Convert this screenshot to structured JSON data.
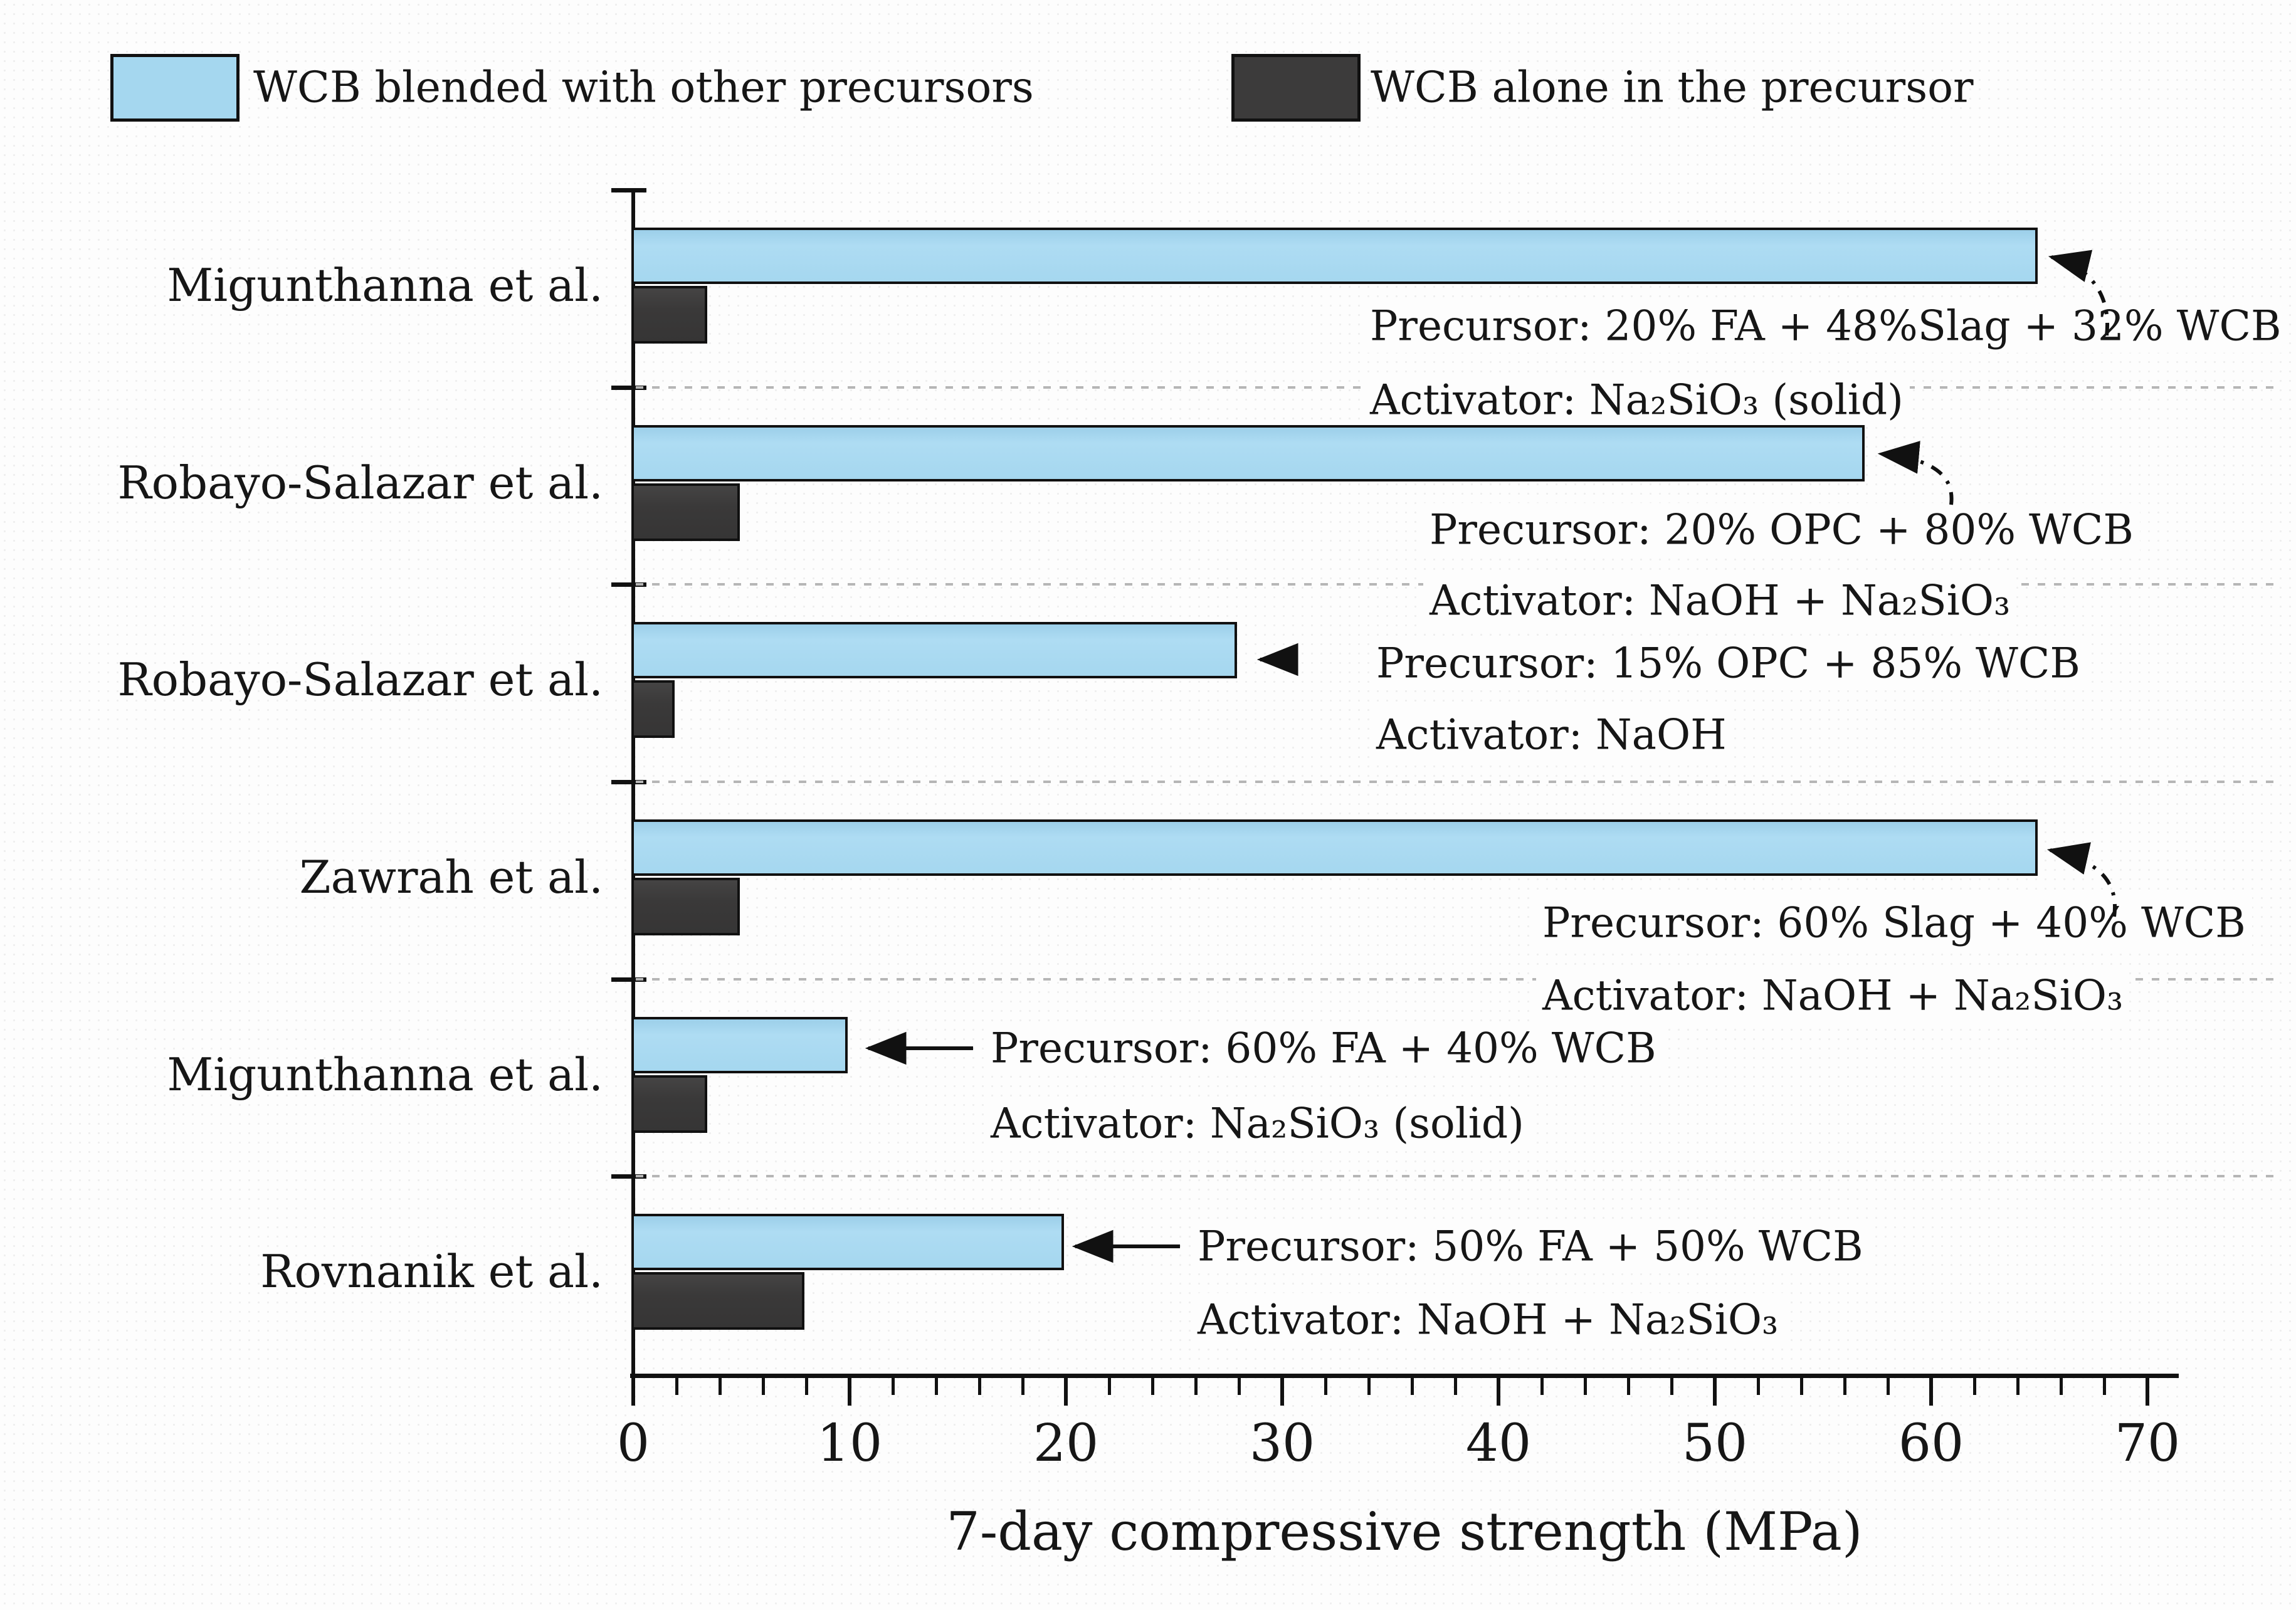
{
  "legend": [
    {
      "label": "WCB blended with other precursors",
      "color": "#a5d7ef"
    },
    {
      "label": "WCB alone in the precursor",
      "color": "#3c3b3b"
    }
  ],
  "chart_data": {
    "type": "bar",
    "orientation": "horizontal",
    "title": "",
    "xlabel": "7-day compressive strength (MPa)",
    "ylabel": "",
    "xlim": [
      0,
      70
    ],
    "x_major_ticks": [
      0,
      10,
      20,
      30,
      40,
      50,
      60,
      70
    ],
    "x_minor_step": 2,
    "grid": "dashed horizontal separators between category groups",
    "legend_position": "top",
    "categories": [
      "Migunthanna et al.",
      "Robayo-Salazar et al.",
      "Robayo-Salazar et al.",
      "Zawrah et al.",
      "Migunthanna et al.",
      "Rovnanik et al."
    ],
    "series": [
      {
        "name": "WCB blended with other precursors",
        "color": "#a5d7ef",
        "values": [
          65,
          57,
          28,
          65,
          10,
          20
        ]
      },
      {
        "name": "WCB alone in the precursor",
        "color": "#3c3b3b",
        "values": [
          3.5,
          5,
          2,
          5,
          3.5,
          8
        ]
      }
    ],
    "annotations": [
      {
        "precursor": "Precursor: 20% FA + 48%Slag + 32% WCB",
        "activator": "Activator: Na₂SiO₃ (solid)"
      },
      {
        "precursor": "Precursor: 20% OPC + 80% WCB",
        "activator": "Activator: NaOH + Na₂SiO₃"
      },
      {
        "precursor": "Precursor: 15% OPC + 85% WCB",
        "activator": "Activator: NaOH"
      },
      {
        "precursor": "Precursor: 60% Slag + 40% WCB",
        "activator": "Activator: NaOH + Na₂SiO₃"
      },
      {
        "precursor": "Precursor: 60% FA + 40% WCB",
        "activator": "Activator: Na₂SiO₃ (solid)"
      },
      {
        "precursor": "Precursor: 50% FA + 50% WCB",
        "activator": "Activator: NaOH + Na₂SiO₃"
      }
    ]
  }
}
